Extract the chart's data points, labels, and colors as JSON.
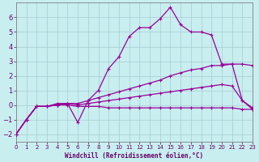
{
  "background_color": "#c8eef0",
  "grid_color": "#a8ccd0",
  "line_color": "#990099",
  "xlabel": "Windchill (Refroidissement éolien,°C)",
  "xlabel_color": "#660066",
  "tick_color": "#660066",
  "xlim": [
    0,
    23
  ],
  "ylim": [
    -2.5,
    7.0
  ],
  "xticks": [
    0,
    1,
    2,
    3,
    4,
    5,
    6,
    7,
    8,
    9,
    10,
    11,
    12,
    13,
    14,
    15,
    16,
    17,
    18,
    19,
    20,
    21,
    22,
    23
  ],
  "yticks": [
    -2,
    -1,
    0,
    1,
    2,
    3,
    4,
    5,
    6
  ],
  "series": [
    {
      "x": [
        0,
        1,
        2,
        3,
        4,
        5,
        6,
        7,
        8,
        9,
        10,
        11,
        12,
        13,
        14,
        15,
        16,
        17,
        18,
        19,
        20,
        21,
        22,
        23
      ],
      "y": [
        -2.0,
        -1.0,
        -0.1,
        -0.1,
        0.1,
        0.1,
        -1.2,
        0.3,
        1.0,
        2.5,
        3.3,
        4.7,
        5.3,
        5.3,
        5.9,
        6.7,
        5.5,
        5.0,
        5.0,
        4.8,
        2.8,
        2.8,
        0.3,
        -0.3
      ]
    },
    {
      "x": [
        0,
        1,
        2,
        3,
        4,
        5,
        6,
        7,
        8,
        9,
        10,
        11,
        12,
        13,
        14,
        15,
        16,
        17,
        18,
        19,
        20,
        21,
        22,
        23
      ],
      "y": [
        -2.0,
        -1.0,
        -0.1,
        -0.1,
        0.0,
        0.1,
        0.1,
        0.3,
        0.5,
        0.7,
        0.9,
        1.1,
        1.3,
        1.5,
        1.7,
        2.0,
        2.2,
        2.4,
        2.5,
        2.7,
        2.7,
        2.8,
        2.8,
        2.7
      ]
    },
    {
      "x": [
        0,
        1,
        2,
        3,
        4,
        5,
        6,
        7,
        8,
        9,
        10,
        11,
        12,
        13,
        14,
        15,
        16,
        17,
        18,
        19,
        20,
        21,
        22,
        23
      ],
      "y": [
        -2.0,
        -1.0,
        -0.1,
        -0.1,
        0.0,
        0.1,
        0.0,
        0.1,
        0.2,
        0.3,
        0.4,
        0.5,
        0.6,
        0.7,
        0.8,
        0.9,
        1.0,
        1.1,
        1.2,
        1.3,
        1.4,
        1.3,
        0.3,
        -0.2
      ]
    },
    {
      "x": [
        0,
        1,
        2,
        3,
        4,
        5,
        6,
        7,
        8,
        9,
        10,
        11,
        12,
        13,
        14,
        15,
        16,
        17,
        18,
        19,
        20,
        21,
        22,
        23
      ],
      "y": [
        -2.0,
        -1.0,
        -0.1,
        -0.1,
        0.0,
        0.0,
        -0.1,
        -0.1,
        -0.1,
        -0.2,
        -0.2,
        -0.2,
        -0.2,
        -0.2,
        -0.2,
        -0.2,
        -0.2,
        -0.2,
        -0.2,
        -0.2,
        -0.2,
        -0.2,
        -0.3,
        -0.3
      ]
    }
  ]
}
